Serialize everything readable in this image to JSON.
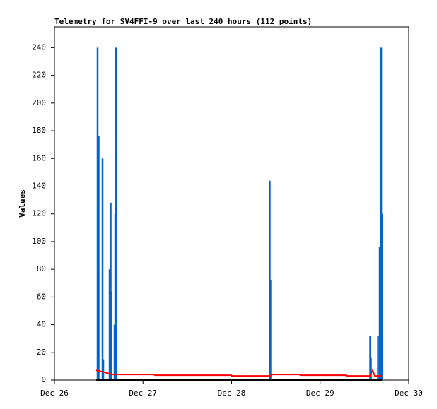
{
  "chart_data": {
    "type": "line",
    "title": "Telemetry for SV4FFI-9 over last 240 hours (112 points)",
    "y_label": "Values",
    "xlim": [
      0,
      4
    ],
    "xticks": [
      {
        "value": 0,
        "label": "Dec 26"
      },
      {
        "value": 1,
        "label": "Dec 27"
      },
      {
        "value": 2,
        "label": "Dec 28"
      },
      {
        "value": 3,
        "label": "Dec 29"
      },
      {
        "value": 4,
        "label": "Dec 30"
      }
    ],
    "ylim": [
      0,
      255
    ],
    "yticks": [
      0,
      20,
      40,
      60,
      80,
      100,
      120,
      140,
      160,
      180,
      200,
      220,
      240
    ],
    "series": [
      {
        "color": "#0066cc",
        "style": "impulse",
        "x": [
          0.487,
          0.499,
          0.543,
          0.551,
          0.623,
          0.635,
          0.639,
          0.679,
          0.687,
          0.691,
          0.695,
          2.431,
          2.439,
          3.565,
          3.573,
          3.653,
          3.673,
          3.689,
          3.697
        ],
        "values": [
          240,
          176,
          160,
          15,
          80,
          128,
          64,
          40,
          120,
          80,
          240,
          144,
          72,
          32,
          16,
          32,
          96,
          240,
          120
        ]
      },
      {
        "color": "#ff0000",
        "style": "line",
        "x": [
          0.471,
          0.543,
          0.599,
          0.663,
          1.126,
          1.134,
          1.996,
          2.004,
          2.443,
          2.451,
          2.77,
          2.778,
          3.297,
          3.305,
          3.561,
          3.593,
          3.617,
          3.697
        ],
        "values": [
          7,
          6,
          5,
          4,
          4,
          3.5,
          3.5,
          3,
          3,
          4,
          4,
          3.5,
          3.5,
          3,
          3,
          7,
          3,
          3
        ]
      },
      {
        "color": "#000000",
        "style": "line",
        "x": [
          0.471,
          3.697
        ],
        "values": [
          0,
          0
        ]
      }
    ]
  }
}
